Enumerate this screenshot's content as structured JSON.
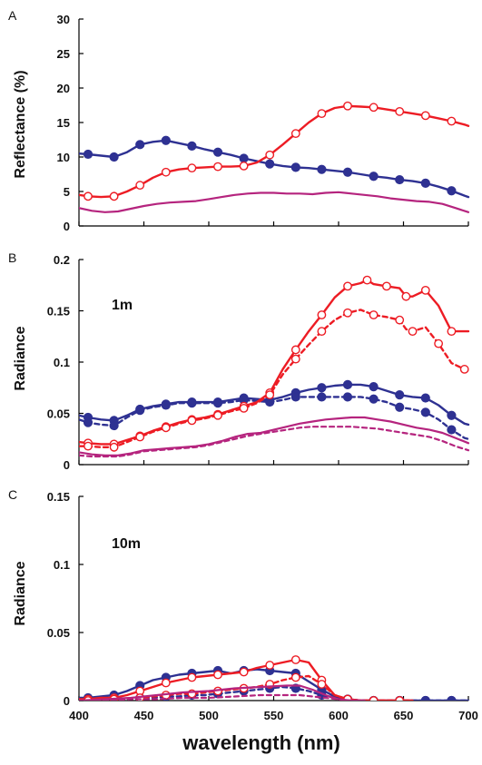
{
  "colors": {
    "blue": "#2e3192",
    "red": "#ed1c24",
    "magenta": "#b5247e"
  },
  "xlabel": "wavelength (nm)",
  "chart_data": [
    {
      "type": "line",
      "panel": "A",
      "ylabel": "Reflectance (%)",
      "annotation": "",
      "xlim": [
        400,
        700
      ],
      "ylim": [
        0,
        30
      ],
      "yticks": [
        0,
        5,
        10,
        15,
        20,
        25,
        30
      ],
      "ytick_labels": [
        "0",
        "5",
        "10",
        "15",
        "20",
        "25",
        "30"
      ],
      "series": [
        {
          "color": "blue",
          "style": "solid",
          "marker": "filled-circle",
          "markers_every": 2,
          "x": [
            400,
            407,
            417,
            427,
            437,
            447,
            457,
            467,
            477,
            487,
            497,
            507,
            517,
            527,
            537,
            547,
            557,
            567,
            577,
            587,
            597,
            607,
            617,
            627,
            637,
            647,
            657,
            667,
            677,
            687,
            697,
            700
          ],
          "y": [
            10.5,
            10.4,
            10.2,
            10.0,
            10.7,
            11.8,
            12.2,
            12.4,
            12.0,
            11.6,
            11.1,
            10.7,
            10.3,
            9.8,
            9.4,
            9.0,
            8.7,
            8.5,
            8.4,
            8.2,
            8.0,
            7.8,
            7.5,
            7.2,
            7.0,
            6.7,
            6.5,
            6.2,
            5.7,
            5.1,
            4.4,
            4.2
          ]
        },
        {
          "color": "red",
          "style": "solid",
          "marker": "open-circle",
          "markers_every": 2,
          "x": [
            400,
            407,
            417,
            427,
            437,
            447,
            457,
            467,
            477,
            487,
            497,
            507,
            517,
            527,
            537,
            547,
            557,
            567,
            577,
            587,
            597,
            607,
            617,
            627,
            637,
            647,
            657,
            667,
            677,
            687,
            697,
            700
          ],
          "y": [
            4.5,
            4.3,
            4.2,
            4.3,
            5.0,
            5.9,
            7.0,
            7.8,
            8.2,
            8.4,
            8.5,
            8.6,
            8.6,
            8.7,
            9.2,
            10.3,
            11.8,
            13.4,
            15.0,
            16.3,
            17.1,
            17.4,
            17.3,
            17.2,
            16.9,
            16.6,
            16.3,
            16.0,
            15.6,
            15.2,
            14.7,
            14.5
          ]
        },
        {
          "color": "magenta",
          "style": "solid",
          "marker": "none",
          "x": [
            400,
            410,
            420,
            430,
            440,
            450,
            460,
            470,
            480,
            490,
            500,
            510,
            520,
            530,
            540,
            550,
            560,
            570,
            580,
            590,
            600,
            610,
            620,
            630,
            640,
            650,
            660,
            670,
            680,
            690,
            700
          ],
          "y": [
            2.6,
            2.2,
            2.0,
            2.1,
            2.5,
            2.9,
            3.2,
            3.4,
            3.5,
            3.6,
            3.9,
            4.2,
            4.5,
            4.7,
            4.8,
            4.8,
            4.7,
            4.7,
            4.6,
            4.8,
            4.9,
            4.7,
            4.5,
            4.3,
            4.0,
            3.8,
            3.6,
            3.5,
            3.2,
            2.6,
            2.0
          ]
        }
      ]
    },
    {
      "type": "line",
      "panel": "B",
      "ylabel": "Radiance",
      "annotation": "1m",
      "xlim": [
        400,
        700
      ],
      "ylim": [
        0,
        0.2
      ],
      "yticks": [
        0,
        0.05,
        0.1,
        0.15,
        0.2
      ],
      "ytick_labels": [
        "0",
        "0.05",
        "0.1",
        "0.15",
        "0.2"
      ],
      "series": [
        {
          "color": "blue",
          "style": "solid",
          "marker": "filled-circle",
          "markers_every": 2,
          "x": [
            400,
            407,
            417,
            427,
            437,
            447,
            457,
            467,
            477,
            487,
            497,
            507,
            517,
            527,
            537,
            547,
            557,
            567,
            577,
            587,
            597,
            607,
            617,
            627,
            637,
            647,
            657,
            667,
            677,
            687,
            697,
            700
          ],
          "y": [
            0.048,
            0.046,
            0.044,
            0.043,
            0.048,
            0.054,
            0.057,
            0.059,
            0.061,
            0.061,
            0.061,
            0.061,
            0.063,
            0.065,
            0.064,
            0.063,
            0.066,
            0.07,
            0.073,
            0.075,
            0.077,
            0.078,
            0.078,
            0.076,
            0.072,
            0.068,
            0.066,
            0.065,
            0.058,
            0.048,
            0.04,
            0.039
          ]
        },
        {
          "color": "blue",
          "style": "dashed",
          "marker": "filled-circle",
          "markers_every": 2,
          "x": [
            400,
            407,
            417,
            427,
            437,
            447,
            457,
            467,
            477,
            487,
            497,
            507,
            517,
            527,
            537,
            547,
            557,
            567,
            577,
            587,
            597,
            607,
            617,
            627,
            637,
            647,
            657,
            667,
            677,
            687,
            697,
            700
          ],
          "y": [
            0.044,
            0.041,
            0.039,
            0.038,
            0.046,
            0.053,
            0.056,
            0.058,
            0.06,
            0.06,
            0.06,
            0.06,
            0.061,
            0.063,
            0.062,
            0.061,
            0.063,
            0.066,
            0.066,
            0.066,
            0.066,
            0.066,
            0.066,
            0.064,
            0.061,
            0.056,
            0.054,
            0.051,
            0.044,
            0.034,
            0.026,
            0.025
          ]
        },
        {
          "color": "red",
          "style": "solid",
          "marker": "open-circle",
          "markers_every": 2,
          "x": [
            400,
            407,
            417,
            427,
            437,
            447,
            457,
            467,
            477,
            487,
            497,
            507,
            517,
            527,
            537,
            547,
            557,
            567,
            577,
            587,
            597,
            607,
            617,
            622,
            627,
            637,
            647,
            652,
            657,
            667,
            677,
            687,
            697,
            700
          ],
          "y": [
            0.022,
            0.021,
            0.02,
            0.02,
            0.024,
            0.028,
            0.033,
            0.037,
            0.041,
            0.044,
            0.046,
            0.049,
            0.053,
            0.057,
            0.061,
            0.07,
            0.093,
            0.112,
            0.13,
            0.146,
            0.163,
            0.174,
            0.177,
            0.18,
            0.176,
            0.174,
            0.172,
            0.164,
            0.164,
            0.17,
            0.155,
            0.13,
            0.13,
            0.13
          ]
        },
        {
          "color": "red",
          "style": "dashed",
          "marker": "open-circle",
          "markers_every": 2,
          "x": [
            400,
            407,
            417,
            427,
            437,
            447,
            457,
            467,
            477,
            487,
            497,
            507,
            517,
            527,
            537,
            547,
            557,
            567,
            577,
            587,
            597,
            607,
            617,
            627,
            637,
            647,
            652,
            657,
            667,
            677,
            687,
            697,
            700
          ],
          "y": [
            0.018,
            0.018,
            0.017,
            0.017,
            0.022,
            0.027,
            0.032,
            0.036,
            0.04,
            0.043,
            0.045,
            0.048,
            0.052,
            0.055,
            0.06,
            0.068,
            0.088,
            0.103,
            0.117,
            0.13,
            0.141,
            0.148,
            0.151,
            0.146,
            0.144,
            0.141,
            0.132,
            0.13,
            0.134,
            0.118,
            0.099,
            0.093,
            0.092
          ]
        },
        {
          "color": "magenta",
          "style": "solid",
          "marker": "none",
          "x": [
            400,
            410,
            420,
            430,
            440,
            450,
            460,
            470,
            480,
            490,
            500,
            510,
            520,
            530,
            540,
            550,
            560,
            570,
            580,
            590,
            600,
            610,
            620,
            630,
            640,
            650,
            660,
            670,
            680,
            690,
            700
          ],
          "y": [
            0.012,
            0.01,
            0.009,
            0.009,
            0.011,
            0.014,
            0.015,
            0.016,
            0.017,
            0.018,
            0.02,
            0.023,
            0.027,
            0.03,
            0.031,
            0.034,
            0.037,
            0.04,
            0.042,
            0.044,
            0.045,
            0.046,
            0.046,
            0.044,
            0.042,
            0.039,
            0.036,
            0.034,
            0.031,
            0.026,
            0.021
          ]
        },
        {
          "color": "magenta",
          "style": "dashed",
          "marker": "none",
          "x": [
            400,
            410,
            420,
            430,
            440,
            450,
            460,
            470,
            480,
            490,
            500,
            510,
            520,
            530,
            540,
            550,
            560,
            570,
            580,
            590,
            600,
            610,
            620,
            630,
            640,
            650,
            660,
            670,
            680,
            690,
            700
          ],
          "y": [
            0.009,
            0.008,
            0.008,
            0.008,
            0.01,
            0.013,
            0.014,
            0.015,
            0.016,
            0.017,
            0.019,
            0.022,
            0.025,
            0.028,
            0.03,
            0.032,
            0.034,
            0.036,
            0.037,
            0.037,
            0.037,
            0.037,
            0.036,
            0.035,
            0.033,
            0.031,
            0.029,
            0.027,
            0.023,
            0.018,
            0.014
          ]
        }
      ]
    },
    {
      "type": "line",
      "panel": "C",
      "ylabel": "Radiance",
      "annotation": "10m",
      "xlim": [
        400,
        700
      ],
      "ylim": [
        0,
        0.15
      ],
      "yticks": [
        0,
        0.05,
        0.1,
        0.15
      ],
      "ytick_labels": [
        "0",
        "0.05",
        "0.1",
        "0.15"
      ],
      "series": [
        {
          "color": "blue",
          "style": "solid",
          "marker": "filled-circle",
          "markers_every": 2,
          "x": [
            400,
            407,
            417,
            427,
            437,
            447,
            457,
            467,
            477,
            487,
            497,
            507,
            517,
            527,
            537,
            547,
            557,
            567,
            577,
            587,
            597,
            607,
            617,
            627,
            637,
            647,
            657,
            667,
            677,
            687,
            697,
            700
          ],
          "y": [
            0.002,
            0.002,
            0.003,
            0.004,
            0.007,
            0.011,
            0.015,
            0.017,
            0.019,
            0.02,
            0.021,
            0.022,
            0.02,
            0.022,
            0.023,
            0.022,
            0.021,
            0.02,
            0.014,
            0.008,
            0.003,
            0.001,
            0.0,
            0.0,
            0.0,
            0.0,
            0.0,
            0.0,
            0.0,
            0.0,
            0.0,
            0.0
          ]
        },
        {
          "color": "blue",
          "style": "dashed",
          "marker": "filled-circle",
          "markers_every": 2,
          "x": [
            400,
            407,
            417,
            427,
            437,
            447,
            457,
            467,
            477,
            487,
            497,
            507,
            517,
            527,
            537,
            547,
            557,
            567,
            577,
            587,
            597,
            607,
            617,
            627,
            637,
            647,
            657,
            667,
            677,
            687,
            697,
            700
          ],
          "y": [
            0.0,
            0.0,
            0.0,
            0.001,
            0.001,
            0.002,
            0.002,
            0.003,
            0.003,
            0.004,
            0.004,
            0.005,
            0.006,
            0.007,
            0.008,
            0.009,
            0.01,
            0.009,
            0.007,
            0.004,
            0.002,
            0.001,
            0.0,
            0.0,
            0.0,
            0.0,
            0.0,
            0.0,
            0.0,
            0.0,
            0.0,
            0.0
          ]
        },
        {
          "color": "red",
          "style": "solid",
          "marker": "open-circle",
          "markers_every": 2,
          "x": [
            400,
            407,
            417,
            427,
            437,
            447,
            457,
            467,
            477,
            487,
            497,
            507,
            517,
            527,
            537,
            547,
            557,
            567,
            577,
            587,
            597,
            607,
            617,
            627,
            637,
            647,
            657
          ],
          "y": [
            0.001,
            0.001,
            0.002,
            0.002,
            0.004,
            0.007,
            0.01,
            0.013,
            0.015,
            0.017,
            0.018,
            0.019,
            0.02,
            0.021,
            0.024,
            0.026,
            0.028,
            0.03,
            0.028,
            0.015,
            0.004,
            0.001,
            0.0,
            0.0,
            0.0,
            0.0,
            0.0
          ]
        },
        {
          "color": "red",
          "style": "dashed",
          "marker": "open-circle",
          "markers_every": 2,
          "x": [
            400,
            407,
            417,
            427,
            437,
            447,
            457,
            467,
            477,
            487,
            497,
            507,
            517,
            527,
            537,
            547,
            557,
            567,
            577,
            587,
            597,
            607,
            617,
            627,
            637,
            647,
            657
          ],
          "y": [
            0.0,
            0.0,
            0.0,
            0.001,
            0.001,
            0.002,
            0.003,
            0.004,
            0.005,
            0.005,
            0.006,
            0.007,
            0.008,
            0.009,
            0.01,
            0.012,
            0.015,
            0.017,
            0.018,
            0.012,
            0.004,
            0.001,
            0.0,
            0.0,
            0.0,
            0.0,
            0.0
          ]
        },
        {
          "color": "magenta",
          "style": "solid",
          "marker": "none",
          "x": [
            400,
            420,
            440,
            460,
            480,
            500,
            520,
            540,
            560,
            570,
            580,
            590,
            600,
            610,
            620
          ],
          "y": [
            0.0,
            0.001,
            0.002,
            0.004,
            0.006,
            0.007,
            0.009,
            0.01,
            0.011,
            0.011,
            0.008,
            0.004,
            0.001,
            0.0,
            0.0
          ]
        },
        {
          "color": "magenta",
          "style": "dashed",
          "marker": "none",
          "x": [
            400,
            420,
            440,
            460,
            480,
            500,
            520,
            540,
            560,
            570,
            580,
            590,
            600,
            610,
            620
          ],
          "y": [
            0.0,
            0.0,
            0.001,
            0.001,
            0.002,
            0.002,
            0.003,
            0.004,
            0.004,
            0.004,
            0.003,
            0.002,
            0.001,
            0.0,
            0.0
          ]
        }
      ]
    }
  ]
}
